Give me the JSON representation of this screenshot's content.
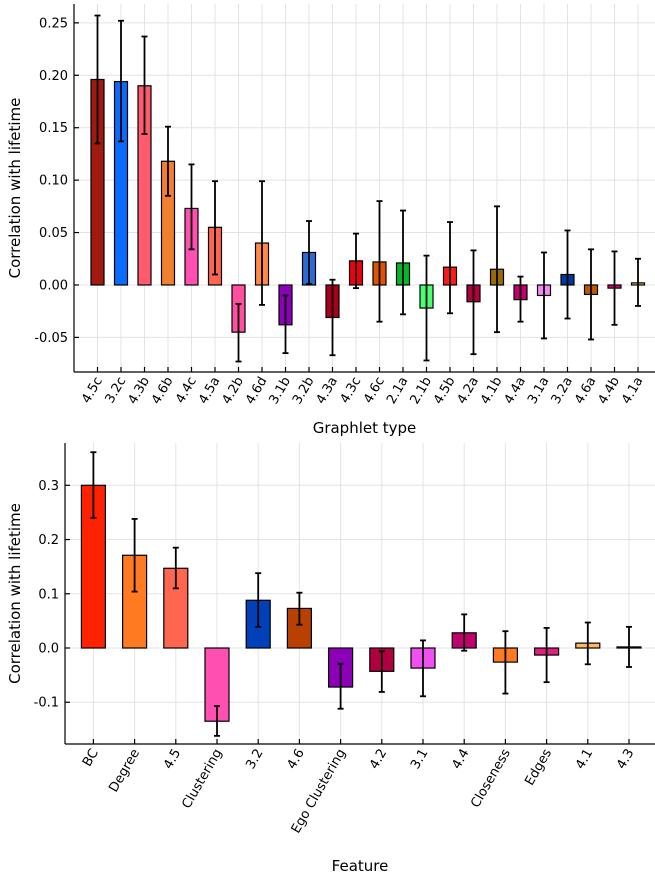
{
  "chart_data": [
    {
      "type": "bar",
      "xlabel": "Graphlet type",
      "ylabel": "Correlation with lifetime",
      "ylim": [
        -0.083,
        0.268
      ],
      "yticks": [
        -0.05,
        0.0,
        0.05,
        0.1,
        0.15,
        0.2,
        0.25
      ],
      "ytick_labels": [
        "-0.05",
        "0.00",
        "0.05",
        "0.10",
        "0.15",
        "0.20",
        "0.25"
      ],
      "grid": true,
      "categories": [
        "4.5c",
        "3.2c",
        "4.3b",
        "4.6b",
        "4.4c",
        "4.5a",
        "4.2b",
        "4.6d",
        "3.1b",
        "3.2b",
        "4.3a",
        "4.3c",
        "4.6c",
        "2.1a",
        "2.1b",
        "4.5b",
        "4.2a",
        "4.1b",
        "4.4a",
        "3.1a",
        "3.2a",
        "4.6a",
        "4.4b",
        "4.1a"
      ],
      "values": [
        0.196,
        0.194,
        0.19,
        0.118,
        0.073,
        0.055,
        -0.045,
        0.04,
        -0.038,
        0.031,
        -0.031,
        0.023,
        0.022,
        0.021,
        -0.022,
        0.017,
        -0.016,
        0.015,
        -0.014,
        -0.01,
        0.01,
        -0.009,
        -0.003,
        0.002
      ],
      "error_low": [
        0.135,
        0.137,
        0.144,
        0.085,
        0.034,
        0.01,
        -0.073,
        -0.019,
        -0.065,
        0.001,
        -0.067,
        -0.003,
        -0.035,
        -0.028,
        -0.072,
        -0.027,
        -0.066,
        -0.045,
        -0.035,
        -0.051,
        -0.032,
        -0.052,
        -0.038,
        -0.02
      ],
      "error_high": [
        0.257,
        0.252,
        0.237,
        0.151,
        0.115,
        0.099,
        -0.018,
        0.099,
        -0.01,
        0.061,
        0.005,
        0.049,
        0.08,
        0.071,
        0.028,
        0.06,
        0.033,
        0.075,
        0.008,
        0.031,
        0.052,
        0.034,
        0.032,
        0.025
      ],
      "colors": [
        "#a11a12",
        "#0a6cff",
        "#ff5a6e",
        "#f08030",
        "#ff4fb0",
        "#ff6650",
        "#ff4f9e",
        "#ff8a45",
        "#8c00b8",
        "#2a6cd6",
        "#a8001a",
        "#f0000e",
        "#e05200",
        "#00b82a",
        "#4aff6e",
        "#ff1a1a",
        "#b00040",
        "#9a6c00",
        "#c0006c",
        "#f28af2",
        "#00389e",
        "#c05800",
        "#e8007e",
        "#ffc860"
      ]
    },
    {
      "type": "bar",
      "xlabel": "Feature",
      "ylabel": "Correlation with lifetime",
      "ylim": [
        -0.177,
        0.378
      ],
      "yticks": [
        -0.1,
        0.0,
        0.1,
        0.2,
        0.3
      ],
      "ytick_labels": [
        "-0.1",
        "0.0",
        "0.1",
        "0.2",
        "0.3"
      ],
      "grid": true,
      "categories": [
        "BC",
        "Degree",
        "4.5",
        "Clustering",
        "3.2",
        "4.6",
        "Ego Clustering",
        "4.2",
        "3.1",
        "4.4",
        "Closeness",
        "Edges",
        "4.1",
        "4.3"
      ],
      "values": [
        0.3,
        0.171,
        0.147,
        -0.135,
        0.088,
        0.073,
        -0.072,
        -0.043,
        -0.037,
        0.028,
        -0.026,
        -0.013,
        0.009,
        0.002
      ],
      "error_low": [
        0.24,
        0.104,
        0.11,
        -0.162,
        0.039,
        0.043,
        -0.112,
        -0.081,
        -0.089,
        -0.005,
        -0.084,
        -0.063,
        -0.03,
        -0.035
      ],
      "error_high": [
        0.361,
        0.238,
        0.185,
        -0.107,
        0.138,
        0.102,
        -0.029,
        -0.006,
        0.014,
        0.062,
        0.031,
        0.037,
        0.047,
        0.039
      ],
      "colors": [
        "#ff2200",
        "#ff7a20",
        "#ff6650",
        "#ff4fb0",
        "#0040b8",
        "#b84000",
        "#8c00b8",
        "#b00040",
        "#f050f0",
        "#c0006c",
        "#ff7a20",
        "#e0207e",
        "#ffb860",
        "#c04060"
      ]
    }
  ]
}
